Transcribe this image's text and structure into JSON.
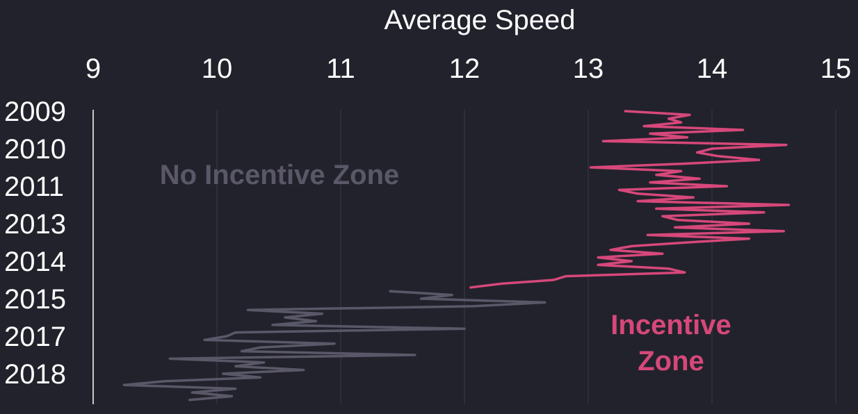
{
  "chart_data": {
    "type": "line",
    "title": "Average Speed",
    "xlabel": "Average Speed",
    "x_axis_position": "top",
    "xlim": [
      9,
      15
    ],
    "x_ticks": [
      "9",
      "10",
      "11",
      "12",
      "13",
      "14",
      "15"
    ],
    "y_tick_labels": [
      "2009",
      "2010",
      "2011",
      "2013",
      "2014",
      "2015",
      "2017",
      "2018"
    ],
    "y_axis_reversed": true,
    "grid": "vertical",
    "colors": {
      "background": "#22222c",
      "incentive": "#d6487a",
      "no_incentive": "#5a5868"
    },
    "annotations": [
      {
        "text": "No Incentive Zone",
        "color": "#5a5868"
      },
      {
        "text": "Incentive",
        "color": "#d6487a"
      },
      {
        "text": "Zone",
        "color": "#d6487a"
      }
    ],
    "series": [
      {
        "color": "#d6487a",
        "y_start": 2009.0,
        "y_step": 0.1,
        "values": [
          13.3,
          13.82,
          13.65,
          13.75,
          13.45,
          14.25,
          13.5,
          13.8,
          13.12,
          14.6,
          14.0,
          13.88,
          14.05,
          14.38,
          13.78,
          13.02,
          13.75,
          13.55,
          13.9,
          13.5,
          14.12,
          13.25,
          13.4,
          13.85,
          13.4,
          14.62,
          13.55,
          14.42,
          13.6,
          13.72,
          14.3,
          13.7,
          14.58,
          13.48,
          14.3,
          13.8,
          13.35,
          13.18,
          13.6,
          13.08,
          13.35,
          13.08,
          13.65,
          13.78,
          12.82,
          12.72,
          12.3,
          12.05
        ]
      },
      {
        "color": "#5a5868",
        "y_start": 2013.8,
        "y_step": 0.1,
        "values": [
          11.4,
          11.9,
          11.65,
          12.65,
          12.08,
          10.25,
          10.85,
          10.55,
          10.8,
          10.45,
          12.0,
          10.15,
          10.08,
          9.9,
          10.95,
          10.35,
          10.2,
          11.6,
          9.62,
          10.38,
          10.15,
          10.7,
          10.05,
          10.35,
          9.58,
          9.25,
          10.15,
          9.8,
          10.12,
          9.78
        ]
      }
    ]
  }
}
